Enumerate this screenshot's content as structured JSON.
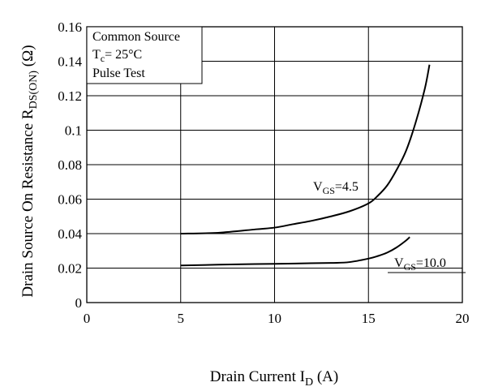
{
  "chart_data": {
    "type": "line",
    "xlabel": {
      "main": "Drain Current  I",
      "sub": "D",
      "unit": " (A)"
    },
    "ylabel": {
      "main": "Drain Source On Resistance  R",
      "sub": "DS(ON)",
      "unit": " (Ω)"
    },
    "xlim": [
      0,
      20
    ],
    "ylim": [
      0,
      0.16
    ],
    "x_ticks": [
      0,
      5,
      10,
      15,
      20
    ],
    "x_tick_labels": [
      "0",
      "5",
      "10",
      "15",
      "20"
    ],
    "y_ticks": [
      0,
      0.02,
      0.04,
      0.06,
      0.08,
      0.1,
      0.12,
      0.14,
      0.16
    ],
    "y_tick_labels": [
      "0",
      "0.02",
      "0.04",
      "0.06",
      "0.08",
      "0.1",
      "0.12",
      "0.14",
      "0.16"
    ],
    "grid": true,
    "conditions": {
      "line1": "Common Source",
      "line2_pre": "T",
      "line2_sub": "c",
      "line2_post": "= 25°C",
      "line3": "Pulse Test"
    },
    "series": [
      {
        "name": "4.5",
        "label_pre": "V",
        "label_sub": "GS",
        "label_post": "=4.5",
        "color": "#000000",
        "x": [
          5,
          7,
          9,
          10,
          11,
          12,
          13,
          14,
          15,
          15.5,
          16,
          16.5,
          17,
          17.5,
          18,
          18.25
        ],
        "y": [
          0.04,
          0.0405,
          0.0425,
          0.0435,
          0.0455,
          0.0475,
          0.05,
          0.053,
          0.0575,
          0.062,
          0.068,
          0.077,
          0.088,
          0.104,
          0.124,
          0.138
        ]
      },
      {
        "name": "10.0",
        "label_pre": "V",
        "label_sub": "GS",
        "label_post": "=10.0",
        "color": "#000000",
        "x": [
          5,
          7,
          10,
          13,
          14,
          15,
          15.5,
          16,
          16.5,
          17,
          17.2
        ],
        "y": [
          0.0215,
          0.022,
          0.0225,
          0.023,
          0.0235,
          0.0255,
          0.027,
          0.029,
          0.032,
          0.036,
          0.038
        ]
      }
    ]
  }
}
